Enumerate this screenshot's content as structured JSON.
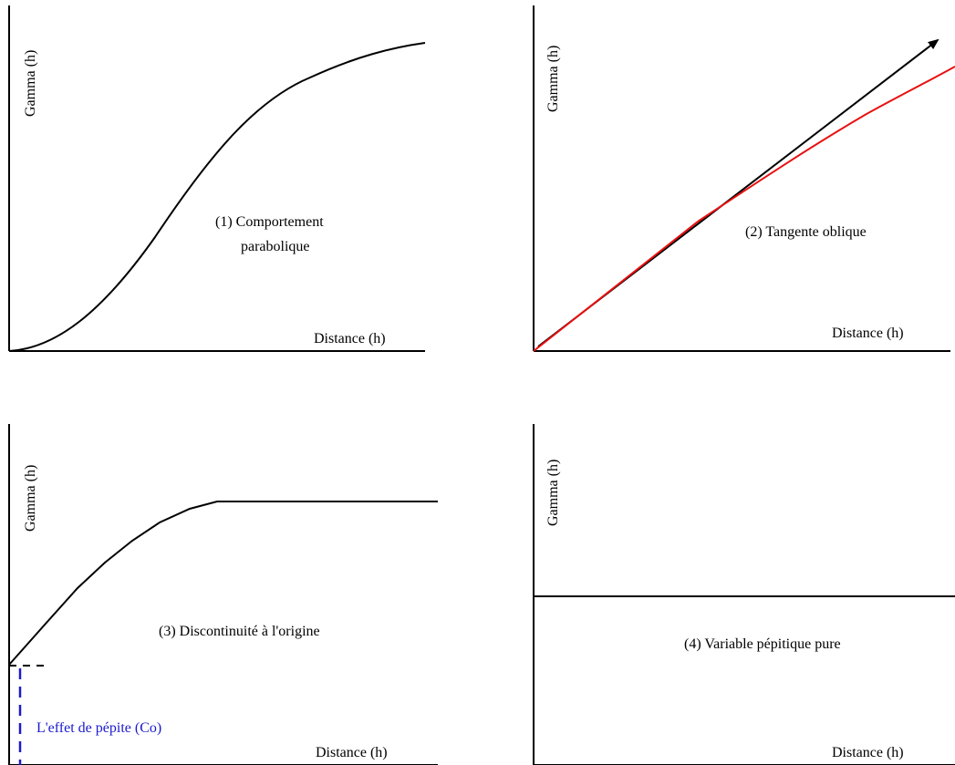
{
  "panels": [
    {
      "id": "parabolic",
      "ylabel": "Gamma (h)",
      "xlabel": "Distance (h)",
      "caption_line1": "(1) Comportement",
      "caption_line2": "parabolique"
    },
    {
      "id": "oblique",
      "ylabel": "Gamma (h)",
      "xlabel": "Distance (h)",
      "caption": "(2) Tangente oblique"
    },
    {
      "id": "discontinuity",
      "ylabel": "Gamma (h)",
      "xlabel": "Distance (h)",
      "caption": "(3) Discontinuité à l'origine",
      "nugget_label": "L'effet de pépite (Co)"
    },
    {
      "id": "pure-nugget",
      "ylabel": "Gamma (h)",
      "xlabel": "Distance (h)",
      "caption": "(4) Variable pépitique pure"
    }
  ],
  "colors": {
    "axis": "#000000",
    "curve": "#000000",
    "tangent_curve": "#e81010",
    "nugget": "#1a1acc"
  }
}
